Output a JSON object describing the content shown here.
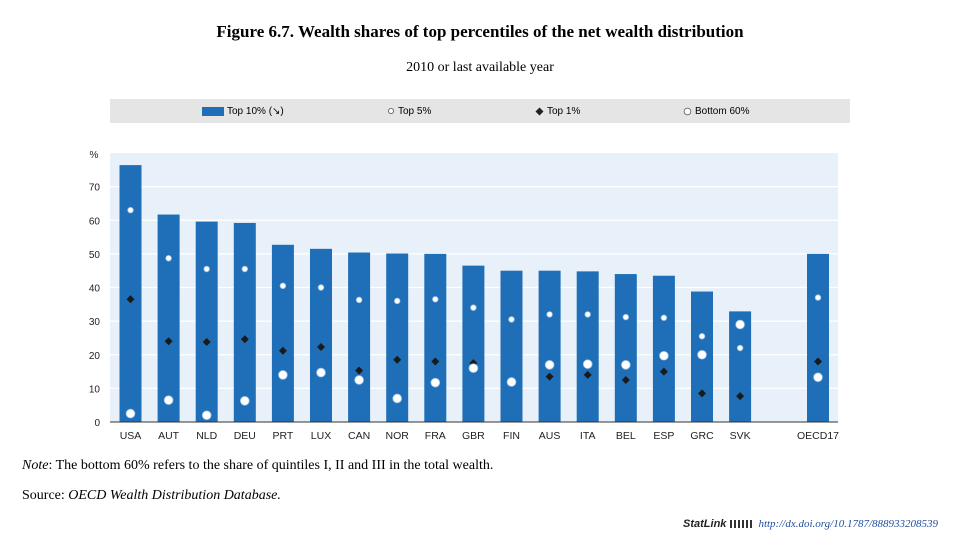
{
  "chart_data": {
    "type": "bar",
    "title": "Figure 6.7. Wealth shares of top percentiles of the net wealth distribution",
    "subtitle": "2010 or last available year",
    "ylabel": "%",
    "ylim": [
      0,
      80
    ],
    "yticks": [
      0,
      10,
      20,
      30,
      40,
      50,
      60,
      70
    ],
    "categories": [
      "USA",
      "AUT",
      "NLD",
      "DEU",
      "PRT",
      "LUX",
      "CAN",
      "NOR",
      "FRA",
      "GBR",
      "FIN",
      "AUS",
      "ITA",
      "BEL",
      "ESP",
      "GRC",
      "SVK",
      "OECD17"
    ],
    "series": [
      {
        "name": "Top 10% (↘)",
        "marker": "bar",
        "values": [
          76.4,
          61.7,
          59.6,
          59.2,
          52.7,
          51.5,
          50.4,
          50.1,
          50.0,
          46.5,
          45.0,
          45.0,
          44.8,
          44.0,
          43.5,
          38.8,
          32.9,
          50.0
        ]
      },
      {
        "name": "Top 5%",
        "marker": "small-circle",
        "values": [
          63.0,
          48.7,
          45.5,
          45.5,
          40.5,
          40.0,
          36.3,
          36.0,
          36.5,
          34.0,
          30.5,
          32.0,
          32.0,
          31.2,
          31.0,
          25.5,
          22.0,
          37.0
        ]
      },
      {
        "name": "Top 1%",
        "marker": "diamond",
        "values": [
          36.5,
          24.0,
          23.8,
          24.6,
          21.2,
          22.3,
          15.3,
          18.5,
          18.0,
          17.5,
          null,
          13.5,
          14.0,
          12.5,
          15.0,
          8.5,
          7.7,
          18.0
        ]
      },
      {
        "name": "Bottom 60%",
        "marker": "large-circle",
        "values": [
          2.5,
          6.5,
          2.0,
          6.3,
          14.0,
          14.7,
          12.5,
          7.0,
          11.7,
          16.0,
          11.9,
          17.0,
          17.2,
          17.0,
          19.7,
          20.0,
          29.0,
          13.3
        ]
      }
    ],
    "legend_position": "top"
  },
  "note": {
    "label": "Note",
    "text": ": The bottom 60% refers to the share of quintiles I, II and III in the total wealth."
  },
  "source": {
    "label": "Source: ",
    "text": "OECD Wealth Distribution Database."
  },
  "statlink": {
    "logo": "StatLink",
    "url": "http://dx.doi.org/10.1787/888933208539"
  },
  "colors": {
    "bar": "#1f6fb8",
    "plot_background": "#e8f1fa",
    "grid": "#ffffff",
    "legend_background": "#e5e5e5"
  }
}
